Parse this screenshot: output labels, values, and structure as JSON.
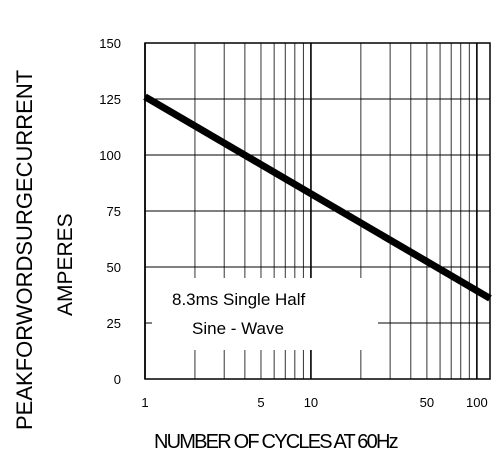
{
  "chart_data": {
    "type": "line",
    "title": "",
    "xlabel": "NUMBER OF CYCLES AT 60Hz",
    "ylabel_line1": "PEAKFORWORDSURGECURRENT",
    "ylabel_line2": "AMPERES",
    "x_scale": "log",
    "xlim": [
      1,
      120
    ],
    "ylim": [
      0,
      150
    ],
    "xtick_values": [
      1,
      5,
      10,
      50,
      100
    ],
    "xtick_labels": [
      "1",
      "5",
      "10",
      "50",
      "100"
    ],
    "ytick_values": [
      0,
      25,
      50,
      75,
      100,
      125,
      150
    ],
    "ytick_labels": [
      "0",
      "25",
      "50",
      "75",
      "100",
      "125",
      "150"
    ],
    "grid": true,
    "series": [
      {
        "x": [
          1,
          120
        ],
        "y": [
          126,
          36
        ]
      }
    ],
    "annotation_line1": "8.3ms Single Half",
    "annotation_line2": "Sine - Wave",
    "line_color": "#000000"
  }
}
